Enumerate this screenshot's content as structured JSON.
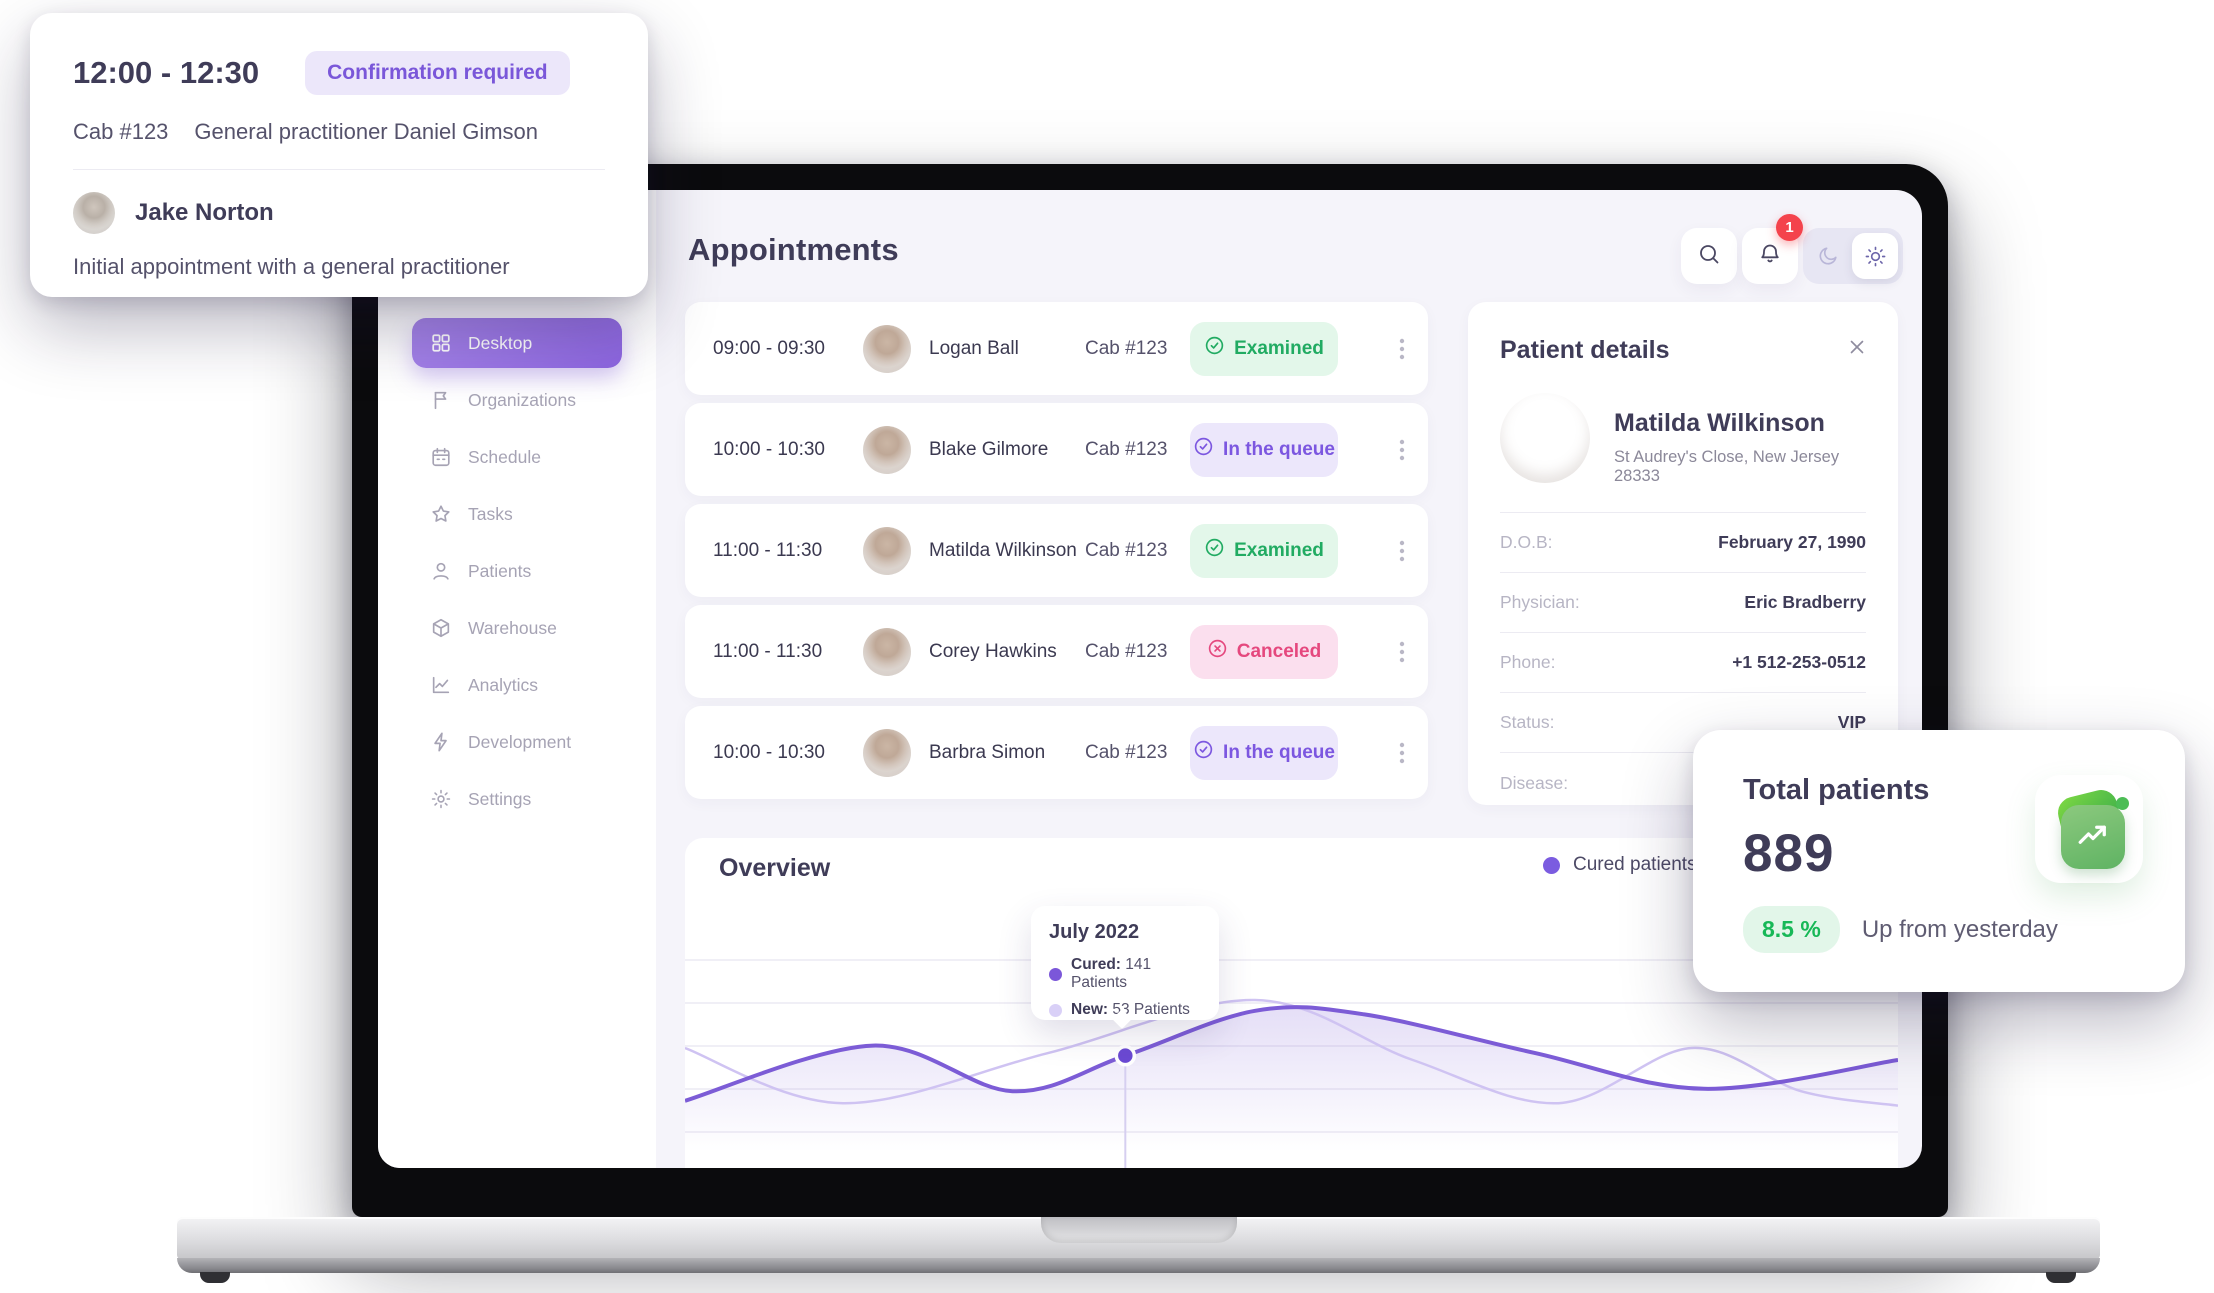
{
  "appointment_card": {
    "time": "12:00 - 12:30",
    "badge": "Confirmation required",
    "cab": "Cab #123",
    "practitioner": "General practitioner Daniel Gimson",
    "patient_name": "Jake Norton",
    "note": "Initial appointment with a general practitioner"
  },
  "sidebar": {
    "items": [
      {
        "label": "Desktop",
        "icon": "grid-icon",
        "active": true
      },
      {
        "label": "Organizations",
        "icon": "flag-icon",
        "active": false
      },
      {
        "label": "Schedule",
        "icon": "calendar-icon",
        "active": false
      },
      {
        "label": "Tasks",
        "icon": "star-icon",
        "active": false
      },
      {
        "label": "Patients",
        "icon": "user-icon",
        "active": false
      },
      {
        "label": "Warehouse",
        "icon": "cube-icon",
        "active": false
      },
      {
        "label": "Analytics",
        "icon": "chart-icon",
        "active": false
      },
      {
        "label": "Development",
        "icon": "lightning-icon",
        "active": false
      },
      {
        "label": "Settings",
        "icon": "gear-icon",
        "active": false
      }
    ]
  },
  "header": {
    "title": "Appointments",
    "notification_count": "1"
  },
  "appointments": {
    "rows": [
      {
        "time": "09:00 - 09:30",
        "name": "Logan Ball",
        "cab": "Cab #123",
        "status": "Examined",
        "status_type": "examined"
      },
      {
        "time": "10:00 - 10:30",
        "name": "Blake Gilmore",
        "cab": "Cab #123",
        "status": "In the queue",
        "status_type": "queue"
      },
      {
        "time": "11:00 - 11:30",
        "name": "Matilda Wilkinson",
        "cab": "Cab #123",
        "status": "Examined",
        "status_type": "examined"
      },
      {
        "time": "11:00 - 11:30",
        "name": "Corey Hawkins",
        "cab": "Cab #123",
        "status": "Canceled",
        "status_type": "canceled"
      },
      {
        "time": "10:00 - 10:30",
        "name": "Barbra Simon",
        "cab": "Cab #123",
        "status": "In the queue",
        "status_type": "queue"
      }
    ]
  },
  "patient_details": {
    "title": "Patient details",
    "name": "Matilda Wilkinson",
    "address": "St Audrey's Close, New Jersey 28333",
    "fields": [
      {
        "label": "D.O.B:",
        "value": "February 27, 1990"
      },
      {
        "label": "Physician:",
        "value": "Eric Bradberry"
      },
      {
        "label": "Phone:",
        "value": "+1 512-253-0512"
      },
      {
        "label": "Status:",
        "value": "VIP"
      },
      {
        "label": "Disease:",
        "value": ""
      }
    ]
  },
  "chart_data": {
    "type": "line",
    "title": "Overview",
    "legend": [
      {
        "name": "Cured patients",
        "color": "#7b5ce0"
      }
    ],
    "x_axis": "months (unlabeled)",
    "grid": "horizontal",
    "series": [
      {
        "name": "Cured patients",
        "color": "#7c5cd6",
        "width": 4,
        "fill": true,
        "points": [
          [
            0,
            0.72
          ],
          [
            0.155,
            0.49
          ],
          [
            0.27,
            0.68
          ],
          [
            0.363,
            0.532
          ],
          [
            0.47,
            0.345
          ],
          [
            0.56,
            0.36
          ],
          [
            0.7,
            0.52
          ],
          [
            0.84,
            0.67
          ],
          [
            1,
            0.55
          ]
        ]
      },
      {
        "name": "New patients",
        "color": "#cfc3f2",
        "width": 2.5,
        "fill": false,
        "points": [
          [
            0,
            0.5
          ],
          [
            0.13,
            0.73
          ],
          [
            0.3,
            0.52
          ],
          [
            0.47,
            0.3
          ],
          [
            0.6,
            0.55
          ],
          [
            0.72,
            0.73
          ],
          [
            0.83,
            0.5
          ],
          [
            0.92,
            0.68
          ],
          [
            1,
            0.74
          ]
        ]
      }
    ],
    "tooltip": {
      "month": "July 2022",
      "cured_key": "Cured:",
      "cured_value": "141 Patients",
      "cured_color": "#7b57d9",
      "new_key": "New:",
      "new_value": "53 Patients",
      "new_color": "#d9d0f7"
    },
    "highlight": {
      "x": 0.363,
      "y": 0.532,
      "series": "Cured patients"
    }
  },
  "total_patients": {
    "title": "Total patients",
    "value": "889",
    "delta": "8.5 %",
    "note": "Up from yesterday"
  },
  "colors": {
    "accent_purple": "#8d66e0",
    "badge_purple_bg": "#ece7fa",
    "badge_purple_fg": "#7a57d9",
    "examined_fg": "#21ab62",
    "canceled_fg": "#e5487e",
    "delta_green": "#17b857",
    "notification_red": "#f4434c",
    "screen_bg": "#f5f4fa"
  }
}
